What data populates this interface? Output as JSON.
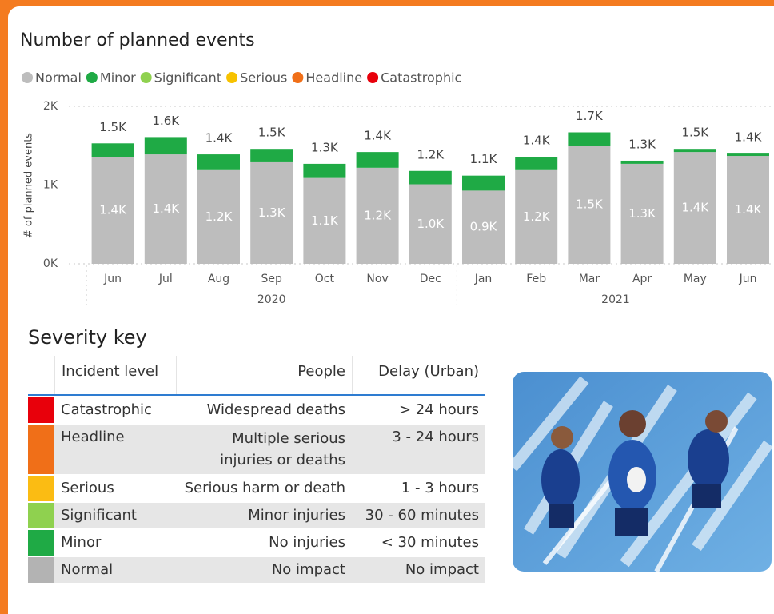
{
  "chart_data": {
    "type": "stacked_bar",
    "title": "Number of planned events",
    "y_label": "# of planned events",
    "categories": [
      "Jun",
      "Jul",
      "Aug",
      "Sep",
      "Oct",
      "Nov",
      "Dec",
      "Jan",
      "Feb",
      "Mar",
      "Apr",
      "May",
      "Jun"
    ],
    "x_groups": [
      {
        "label": "2020",
        "count": 7
      },
      {
        "label": "2021",
        "count": 6
      }
    ],
    "series": [
      {
        "name": "Normal",
        "color": "#bdbdbd",
        "values": [
          1360,
          1390,
          1190,
          1290,
          1090,
          1220,
          1010,
          930,
          1190,
          1500,
          1270,
          1420,
          1370
        ],
        "value_labels": [
          "1.4K",
          "1.4K",
          "1.2K",
          "1.3K",
          "1.1K",
          "1.2K",
          "1.0K",
          "0.9K",
          "1.2K",
          "1.5K",
          "1.3K",
          "1.4K",
          "1.4K"
        ]
      },
      {
        "name": "Minor",
        "color": "#1faa45",
        "values": [
          170,
          220,
          200,
          170,
          180,
          200,
          170,
          190,
          170,
          170,
          40,
          40,
          30
        ]
      },
      {
        "name": "Significant",
        "color": "#8fd14f",
        "values": [
          null,
          null,
          null,
          null,
          null,
          null,
          null,
          null,
          null,
          null,
          null,
          null,
          null
        ]
      },
      {
        "name": "Serious",
        "color": "#f7c200",
        "values": [
          null,
          null,
          null,
          null,
          null,
          null,
          null,
          null,
          null,
          null,
          null,
          null,
          null
        ]
      },
      {
        "name": "Headline",
        "color": "#f06f18",
        "values": [
          null,
          null,
          null,
          null,
          null,
          null,
          null,
          null,
          null,
          null,
          null,
          null,
          null
        ]
      },
      {
        "name": "Catastrophic",
        "color": "#e8000b",
        "values": [
          null,
          null,
          null,
          null,
          null,
          null,
          null,
          null,
          null,
          null,
          null,
          null,
          null
        ]
      }
    ],
    "totals": [
      1530,
      1610,
      1390,
      1460,
      1270,
      1420,
      1180,
      1120,
      1360,
      1670,
      1310,
      1460,
      1400
    ],
    "total_labels": [
      "1.5K",
      "1.6K",
      "1.4K",
      "1.5K",
      "1.3K",
      "1.4K",
      "1.2K",
      "1.1K",
      "1.4K",
      "1.7K",
      "1.3K",
      "1.5K",
      "1.4K"
    ],
    "ylim": [
      0,
      2000
    ],
    "yticks": [
      {
        "value": 0,
        "label": "0K"
      },
      {
        "value": 1000,
        "label": "1K"
      },
      {
        "value": 2000,
        "label": "2K"
      }
    ],
    "grid": true
  },
  "severity_key": {
    "title": "Severity key",
    "headers": [
      "Incident level",
      "People",
      "Delay (Urban)"
    ],
    "rows": [
      {
        "color": "#e8000b",
        "level": "Catastrophic",
        "people": "Widespread deaths",
        "delay": "> 24 hours"
      },
      {
        "color": "#f06f18",
        "level": "Headline",
        "people": "Multiple serious injuries or deaths",
        "delay": "3 - 24 hours"
      },
      {
        "color": "#fbbc13",
        "level": "Serious",
        "people": "Serious harm or death",
        "delay": "1 - 3 hours"
      },
      {
        "color": "#8fd14f",
        "level": "Significant",
        "people": "Minor injuries",
        "delay": "30 - 60 minutes"
      },
      {
        "color": "#1faa45",
        "level": "Minor",
        "people": "No injuries",
        "delay": "< 30 minutes"
      },
      {
        "color": "#b3b3b3",
        "level": "Normal",
        "people": "No impact",
        "delay": "No impact"
      }
    ]
  }
}
